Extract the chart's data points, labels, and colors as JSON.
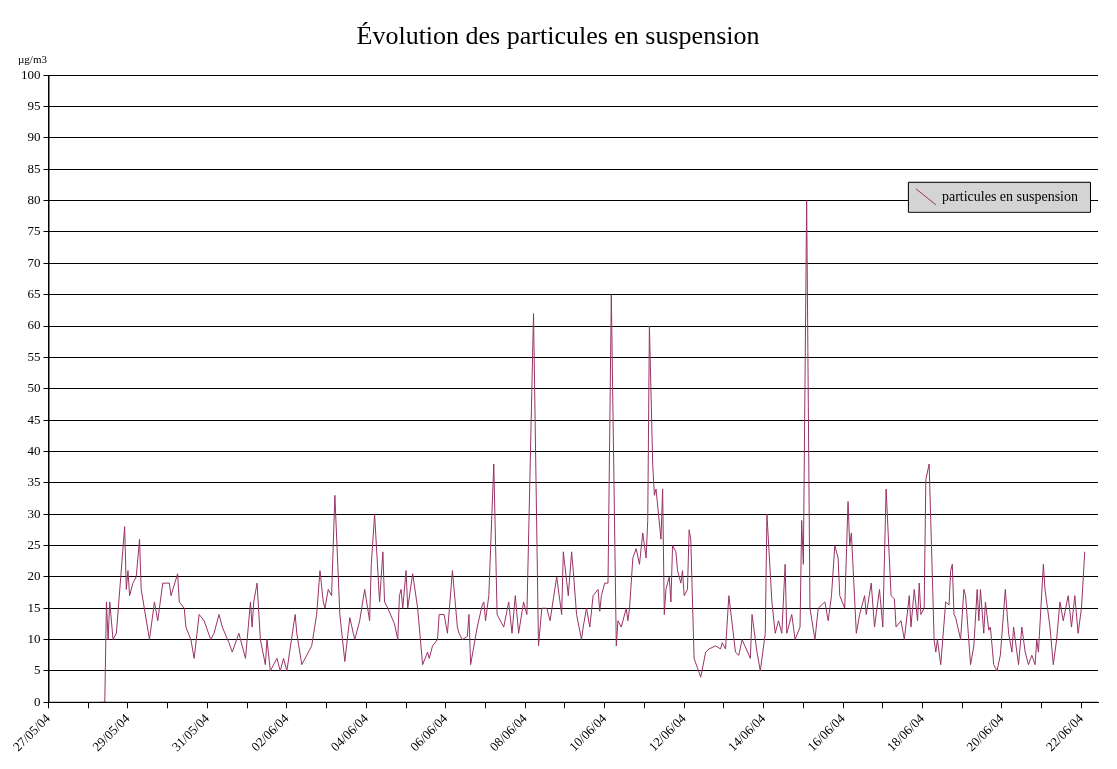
{
  "chart_data": {
    "type": "line",
    "title": "Évolution des particules en suspension",
    "ylabel": "µg/m3",
    "x": [
      "--05-28T07:00",
      "--05-28T10:00",
      "--05-28T11:00",
      "--05-28T12:00",
      "--05-28T13:00",
      "--05-28T15:00",
      "--05-28T17:00",
      "--05-28T22:00",
      "--05-28T23:00",
      "--05-29T00:00",
      "--05-29T01:00",
      "--05-29T03:00",
      "--05-29T05:00",
      "--05-29T07:00",
      "--05-29T08:00",
      "--05-29T13:00",
      "--05-29T16:00",
      "--05-29T18:00",
      "--05-29T21:00",
      "--05-30T01:00",
      "--05-30T02:00",
      "--05-30T06:00",
      "--05-30T07:00",
      "--05-30T10:00",
      "--05-30T11:00",
      "--05-30T14:00",
      "--05-30T16:00",
      "--05-30T19:00",
      "--05-30T22:00",
      "--05-31T02:00",
      "--05-31T04:00",
      "--05-31T07:00",
      "--05-31T09:00",
      "--05-31T13:00",
      "--05-31T15:00",
      "--05-31T19:00",
      "--05-31T23:00",
      "--06-01T02:00",
      "--06-01T03:00",
      "--06-01T04:00",
      "--06-01T06:00",
      "--06-01T08:00",
      "--06-01T11:00",
      "--06-01T12:00",
      "--06-01T14:00",
      "--06-01T18:00",
      "--06-01T20:00",
      "--06-01T22:00",
      "--06-02T00:00",
      "--06-02T05:00",
      "--06-02T06:00",
      "--06-02T09:00",
      "--06-02T15:00",
      "--06-02T18:00",
      "--06-02T20:00",
      "--06-02T22:00",
      "--06-02T23:00",
      "--06-03T01:00",
      "--06-03T03:00",
      "--06-03T05:00",
      "--06-03T08:00",
      "--06-03T11:00",
      "--06-03T14:00",
      "--06-03T17:00",
      "--06-03T20:00",
      "--06-03T23:00",
      "--06-04T02:00",
      "--06-04T03:00",
      "--06-04T05:00",
      "--06-04T08:00",
      "--06-04T10:00",
      "--06-04T11:00",
      "--06-04T13:00",
      "--06-04T17:00",
      "--06-04T19:00",
      "--06-04T20:00",
      "--06-04T21:00",
      "--06-04T22:00",
      "--06-05T00:00",
      "--06-05T01:00",
      "--06-05T04:00",
      "--06-05T07:00",
      "--06-05T10:00",
      "--06-05T13:00",
      "--06-05T14:00",
      "--06-05T16:00",
      "--06-05T19:00",
      "--06-05T20:00",
      "--06-05T23:00",
      "--06-06T01:00",
      "--06-06T04:00",
      "--06-06T07:00",
      "--06-06T08:00",
      "--06-06T10:00",
      "--06-06T13:00",
      "--06-06T14:00",
      "--06-06T15:00",
      "--06-06T19:00",
      "--06-06T22:00",
      "--06-06T23:00",
      "--06-07T00:00",
      "--06-07T02:00",
      "--06-07T05:00",
      "--06-07T07:00",
      "--06-07T11:00",
      "--06-07T14:00",
      "--06-07T16:00",
      "--06-07T18:00",
      "--06-07T20:00",
      "--06-07T23:00",
      "--06-08T01:00",
      "--06-08T05:00",
      "--06-08T08:00",
      "--06-08T10:00",
      "--06-08T13:00",
      "--06-08T15:00",
      "--06-08T19:00",
      "--06-08T22:00",
      "--06-08T23:00",
      "--06-09T02:00",
      "--06-09T04:00",
      "--06-09T05:00",
      "--06-09T07:00",
      "--06-09T10:00",
      "--06-09T11:00",
      "--06-09T13:00",
      "--06-09T15:00",
      "--06-09T17:00",
      "--06-09T20:00",
      "--06-09T21:00",
      "--06-09T22:00",
      "--06-10T00:00",
      "--06-10T02:00",
      "--06-10T04:00",
      "--06-10T07:00",
      "--06-10T08:00",
      "--06-10T10:00",
      "--06-10T13:00",
      "--06-10T14:00",
      "--06-10T15:00",
      "--06-10T17:00",
      "--06-10T19:00",
      "--06-10T21:00",
      "--06-10T23:00",
      "--06-11T01:00",
      "--06-11T02:00",
      "--06-11T03:00",
      "--06-11T05:00",
      "--06-11T06:00",
      "--06-11T07:00",
      "--06-11T10:00",
      "--06-11T11:00",
      "--06-11T12:00",
      "--06-11T13:00",
      "--06-11T15:00",
      "--06-11T16:00",
      "--06-11T17:00",
      "--06-11T19:00",
      "--06-11T20:00",
      "--06-11T22:00",
      "--06-11T23:00",
      "--06-12T00:00",
      "--06-12T02:00",
      "--06-12T03:00",
      "--06-12T04:00",
      "--06-12T06:00",
      "--06-12T10:00",
      "--06-12T13:00",
      "--06-12T15:00",
      "--06-12T19:00",
      "--06-12T22:00",
      "--06-12T23:00",
      "--06-13T01:00",
      "--06-13T03:00",
      "--06-13T07:00",
      "--06-13T09:00",
      "--06-13T11:00",
      "--06-13T16:00",
      "--06-13T17:00",
      "--06-13T20:00",
      "--06-13T22:00",
      "--06-14T01:00",
      "--06-14T02:00",
      "--06-14T05:00",
      "--06-14T07:00",
      "--06-14T09:00",
      "--06-14T11:00",
      "--06-14T13:00",
      "--06-14T14:00",
      "--06-14T17:00",
      "--06-14T19:00",
      "--06-14T22:00",
      "--06-14T23:00",
      "--06-15T00:00",
      "--06-15T02:00",
      "--06-15T04:00",
      "--06-15T07:00",
      "--06-15T09:00",
      "--06-15T13:00",
      "--06-15T15:00",
      "--06-15T17:00",
      "--06-15T19:00",
      "--06-15T21:00",
      "--06-15T22:00",
      "--06-16T01:00",
      "--06-16T03:00",
      "--06-16T04:00",
      "--06-16T05:00",
      "--06-16T08:00",
      "--06-16T10:00",
      "--06-16T13:00",
      "--06-16T14:00",
      "--06-16T17:00",
      "--06-16T19:00",
      "--06-16T22:00",
      "--06-17T00:00",
      "--06-17T02:00",
      "--06-17T05:00",
      "--06-17T07:00",
      "--06-17T08:00",
      "--06-17T11:00",
      "--06-17T13:00",
      "--06-17T16:00",
      "--06-17T17:00",
      "--06-17T19:00",
      "--06-17T21:00",
      "--06-17T22:00",
      "--06-17T23:00",
      "--06-18T01:00",
      "--06-18T02:00",
      "--06-18T04:00",
      "--06-18T07:00",
      "--06-18T08:00",
      "--06-18T09:00",
      "--06-18T11:00",
      "--06-18T14:00",
      "--06-18T16:00",
      "--06-18T17:00",
      "--06-18T18:00",
      "--06-18T19:00",
      "--06-18T20:00",
      "--06-18T23:00",
      "--06-19T01:00",
      "--06-19T02:00",
      "--06-19T05:00",
      "--06-19T07:00",
      "--06-19T09:00",
      "--06-19T10:00",
      "--06-19T11:00",
      "--06-19T13:00",
      "--06-19T14:00",
      "--06-19T16:00",
      "--06-19T17:00",
      "--06-19T19:00",
      "--06-19T21:00",
      "--06-19T23:00",
      "--06-20T02:00",
      "--06-20T04:00",
      "--06-20T06:00",
      "--06-20T07:00",
      "--06-20T10:00",
      "--06-20T12:00",
      "--06-20T14:00",
      "--06-20T16:00",
      "--06-20T18:00",
      "--06-20T20:00",
      "--06-20T21:00",
      "--06-20T22:00",
      "--06-21T01:00",
      "--06-21T02:00",
      "--06-21T05:00",
      "--06-21T07:00",
      "--06-21T09:00",
      "--06-21T11:00",
      "--06-21T13:00",
      "--06-21T16:00",
      "--06-21T18:00",
      "--06-21T20:00",
      "--06-21T22:00",
      "--06-22T00:00",
      "--06-22T02:00"
    ],
    "series": [
      {
        "name": "particules en suspension",
        "color": "#993366",
        "values": [
          0,
          0,
          16,
          10,
          16,
          10,
          11,
          28,
          18,
          21,
          17,
          19,
          20,
          26,
          18,
          10,
          16,
          13,
          19,
          19,
          17,
          20.5,
          16,
          15,
          12,
          10,
          7,
          14,
          13,
          10,
          11,
          14,
          12,
          9.5,
          8,
          11,
          7,
          16,
          12,
          16,
          19,
          10,
          6,
          10,
          5,
          7,
          5,
          7,
          5,
          14,
          11,
          6,
          9,
          14,
          21,
          16,
          15,
          18,
          17,
          33,
          14,
          6.5,
          13.5,
          10,
          13,
          18,
          13,
          22,
          30,
          16,
          24,
          16,
          15,
          12.5,
          10,
          17,
          18,
          15,
          21,
          15,
          20.5,
          15,
          6,
          8,
          7,
          9,
          10,
          14,
          14,
          11,
          21,
          12,
          11,
          10,
          10.5,
          14,
          6,
          12,
          15.5,
          16,
          13,
          17,
          38,
          14,
          12,
          16,
          11,
          17,
          11,
          16,
          14,
          62,
          9,
          15,
          15,
          13,
          20,
          14,
          24,
          17,
          24,
          21,
          14,
          10,
          12,
          15,
          12,
          17,
          18,
          14.5,
          17,
          19,
          19,
          65,
          9,
          13,
          12,
          15,
          13,
          15,
          23,
          24.5,
          22,
          27,
          23,
          29,
          60,
          38,
          33,
          34,
          26,
          34,
          14,
          18,
          20,
          16,
          25,
          24,
          21,
          19,
          21,
          17,
          18,
          27.5,
          26,
          7,
          4,
          8,
          8.5,
          9,
          8.5,
          9.5,
          8.5,
          17,
          8,
          7.5,
          10,
          7,
          14,
          8,
          5,
          11,
          30,
          16,
          11,
          13,
          11,
          22,
          11,
          14,
          10,
          12,
          29,
          22,
          80,
          15,
          10,
          15,
          16,
          13,
          17,
          25,
          23,
          17,
          15,
          32,
          25,
          27,
          11,
          14,
          17,
          14,
          19,
          12,
          18,
          12,
          34,
          17,
          16.5,
          12,
          13,
          10,
          17,
          12,
          18,
          13,
          19,
          14,
          15,
          35.5,
          38,
          10,
          8,
          10,
          6,
          16,
          15.5,
          21,
          22,
          14,
          13.5,
          10,
          18,
          17,
          6,
          9,
          18,
          13,
          18,
          11,
          16,
          11.5,
          12,
          6,
          5,
          7.5,
          18,
          11,
          8,
          12,
          6,
          12,
          8,
          6,
          7.5,
          6,
          10,
          8,
          22,
          18,
          12,
          6,
          10,
          16,
          13,
          17,
          12,
          17,
          11,
          15,
          24
        ]
      }
    ],
    "xlim": [
      "--05-27",
      "--06-22T10:00"
    ],
    "xticks": [
      {
        "value": "--05-27",
        "label": "27/05/04"
      },
      {
        "value": "--05-28",
        "label": null
      },
      {
        "value": "--05-29",
        "label": "29/05/04"
      },
      {
        "value": "--05-30",
        "label": null
      },
      {
        "value": "--05-31",
        "label": "31/05/04"
      },
      {
        "value": "--06-01",
        "label": null
      },
      {
        "value": "--06-02",
        "label": "02/06/04"
      },
      {
        "value": "--06-03",
        "label": null
      },
      {
        "value": "--06-04",
        "label": "04/06/04"
      },
      {
        "value": "--06-05",
        "label": null
      },
      {
        "value": "--06-06",
        "label": "06/06/04"
      },
      {
        "value": "--06-07",
        "label": null
      },
      {
        "value": "--06-08",
        "label": "08/06/04"
      },
      {
        "value": "--06-09",
        "label": null
      },
      {
        "value": "--06-10",
        "label": "10/06/04"
      },
      {
        "value": "--06-11",
        "label": null
      },
      {
        "value": "--06-12",
        "label": "12/06/04"
      },
      {
        "value": "--06-13",
        "label": null
      },
      {
        "value": "--06-14",
        "label": "14/06/04"
      },
      {
        "value": "--06-15",
        "label": null
      },
      {
        "value": "--06-16",
        "label": "16/06/04"
      },
      {
        "value": "--06-17",
        "label": null
      },
      {
        "value": "--06-18",
        "label": "18/06/04"
      },
      {
        "value": "--06-19",
        "label": null
      },
      {
        "value": "--06-20",
        "label": "20/06/04"
      },
      {
        "value": "--06-21",
        "label": null
      },
      {
        "value": "--06-22",
        "label": "22/06/04"
      }
    ],
    "ylim": [
      0,
      100
    ],
    "yticks": [
      0,
      5,
      10,
      15,
      20,
      25,
      30,
      35,
      40,
      45,
      50,
      55,
      60,
      65,
      70,
      75,
      80,
      85,
      90,
      95,
      100
    ],
    "grid": "y",
    "legend": "top right",
    "marker": "none",
    "line_style": "solid"
  }
}
